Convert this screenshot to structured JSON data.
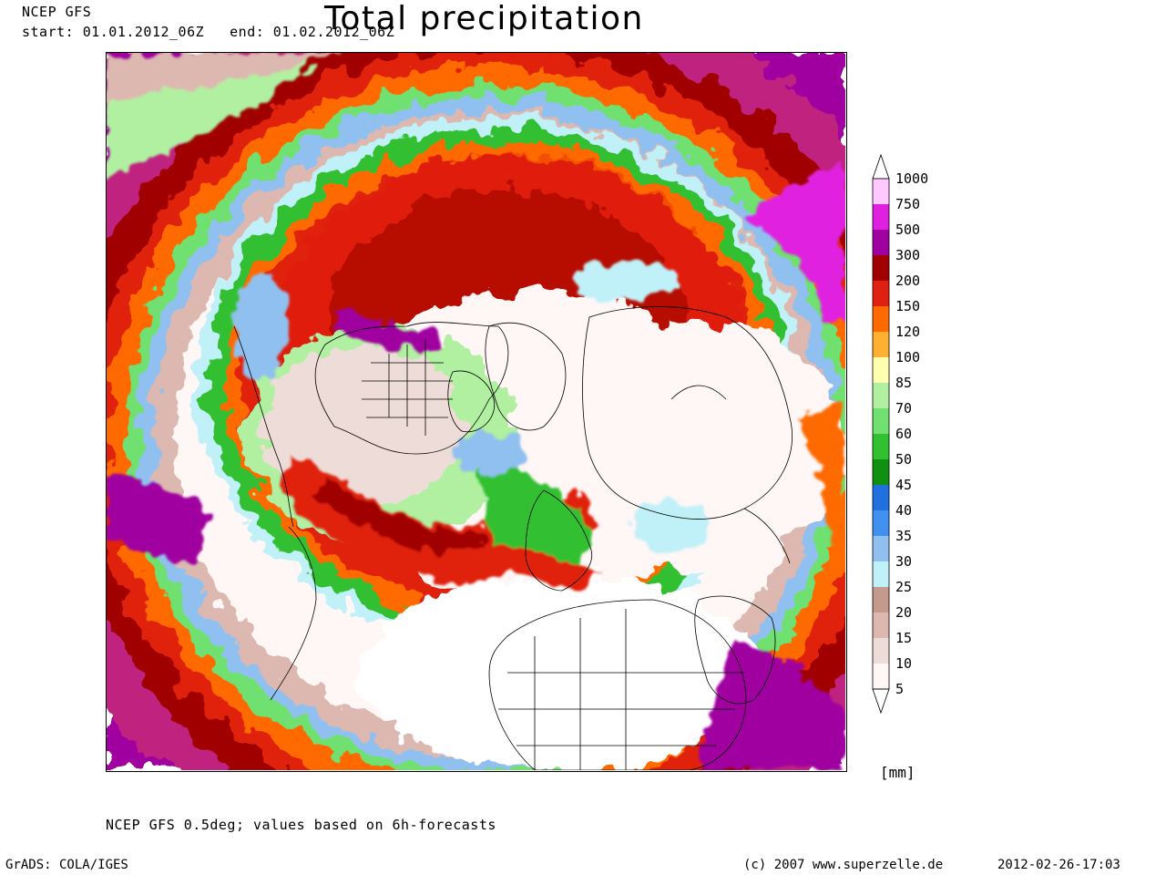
{
  "header": {
    "model": "NCEP GFS",
    "start": "start: 01.01.2012_06Z",
    "end": "end: 01.02.2012_06Z",
    "title": "Total precipitation"
  },
  "legend": {
    "unit": "[mm]",
    "levels": [
      "1000",
      "750",
      "500",
      "300",
      "200",
      "150",
      "120",
      "100",
      "85",
      "70",
      "60",
      "50",
      "45",
      "40",
      "35",
      "30",
      "25",
      "20",
      "15",
      "10",
      "5"
    ],
    "colors": [
      "#ffffff",
      "#ffc8ff",
      "#e020e0",
      "#a000a0",
      "#a00000",
      "#e02010",
      "#ff6a00",
      "#ffb030",
      "#ffffb0",
      "#b0f0a0",
      "#70e070",
      "#30c030",
      "#109010",
      "#2070e0",
      "#4090f0",
      "#90c0f0",
      "#c0f0f8",
      "#c49a8c",
      "#dcb8b0",
      "#eedcd8",
      "#fff6f6"
    ]
  },
  "footer": {
    "source": "NCEP GFS 0.5deg; values based on 6h-forecasts",
    "software": "GrADS: COLA/IGES",
    "copyright": "(c) 2007 www.superzelle.de",
    "timestamp": "2012-02-26-17:03"
  }
}
